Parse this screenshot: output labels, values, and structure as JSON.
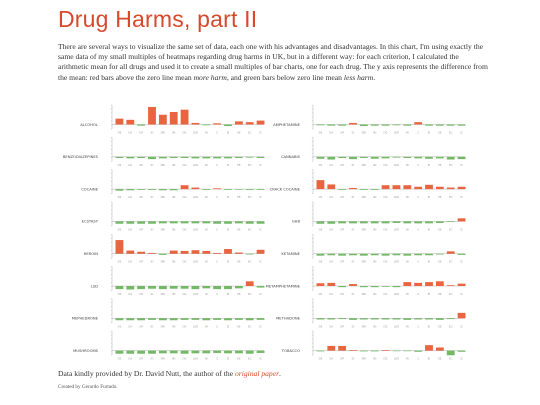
{
  "page": {
    "title": "Drug Harms, part II",
    "intro_1": "There are several ways to visualize the same set of data, each one with his advantages and disadvantages. In this chart, I'm using exactly the same data of my small multiples of heatmaps regarding drug harms in UK, but in a different way: for each criterion, I calculated the arithmetic mean for all drugs and used it to create a small multiples of bar charts, one for each drug. The y axis represents the difference from the mean: red bars above the zero line mean ",
    "intro_more": "more harm",
    "intro_2": ", and green bars below zero line mean ",
    "intro_less": "less harm",
    "intro_3": ".",
    "footer_text": "Data kindly provided by Dr. David Nutt, the author of the ",
    "footer_link": "original paper",
    "footer_end": ".",
    "credit": "Created by Gerardo Furtado."
  },
  "colors": {
    "positive": "#e8653f",
    "negative": "#72b865",
    "axis": "#9c9c9c",
    "title": "#d6492b"
  },
  "chart_data": {
    "type": "bar",
    "layout": "small multiples",
    "categories": [
      "DS",
      "DA",
      "DP",
      "ID",
      "DRI",
      "IRI",
      "DG",
      "LOR",
      "IN",
      "C",
      "EI",
      "EE",
      "EC",
      "IC"
    ],
    "series": [
      {
        "name": "ALCOHOL",
        "values": [
          1.5,
          1.2,
          -0.3,
          4.5,
          2.5,
          3.2,
          3.8,
          0.4,
          -0.2,
          0.3,
          -0.4,
          0.8,
          0.6,
          1.0
        ]
      },
      {
        "name": "AMPHETAMINE",
        "values": [
          -0.2,
          -0.3,
          -0.3,
          0.4,
          -0.4,
          -0.3,
          -0.3,
          -0.2,
          -0.3,
          0.6,
          -0.3,
          -0.3,
          -0.3,
          -0.3
        ]
      },
      {
        "name": "BENZODIAZEPINES",
        "values": [
          -0.3,
          -0.4,
          -0.3,
          -0.6,
          -0.4,
          -0.3,
          -0.3,
          -0.4,
          -0.4,
          -0.4,
          -0.4,
          -0.3,
          -0.2,
          -0.3
        ]
      },
      {
        "name": "CANNABIS",
        "values": [
          -0.5,
          -0.7,
          -0.3,
          -0.6,
          -0.3,
          -0.5,
          -0.4,
          -0.2,
          -0.3,
          -0.4,
          -0.5,
          -0.4,
          -0.7,
          -0.6
        ]
      },
      {
        "name": "COCAINE",
        "values": [
          -0.4,
          -0.3,
          -0.2,
          -0.2,
          -0.3,
          -0.3,
          1.0,
          0.4,
          -0.2,
          0.2,
          -0.2,
          -0.1,
          -0.2,
          -0.2
        ]
      },
      {
        "name": "CRACK COCAINE",
        "values": [
          2.3,
          1.2,
          -0.2,
          0.3,
          -0.2,
          -0.2,
          1.0,
          1.0,
          1.0,
          0.6,
          1.1,
          0.6,
          0.4,
          0.6
        ]
      },
      {
        "name": "ECSTASY",
        "values": [
          -0.6,
          -0.6,
          -0.6,
          -0.6,
          -0.5,
          -0.5,
          -0.5,
          -0.5,
          -0.5,
          -0.6,
          -0.6,
          -0.5,
          -0.6,
          -0.6
        ]
      },
      {
        "name": "GHB",
        "values": [
          -0.6,
          -0.6,
          -0.5,
          -0.5,
          -0.5,
          -0.5,
          -0.5,
          -0.4,
          -0.5,
          -0.5,
          -0.5,
          -0.4,
          -0.1,
          0.8
        ]
      },
      {
        "name": "HEROIN",
        "values": [
          3.5,
          0.8,
          0.5,
          0.2,
          -0.3,
          0.8,
          0.7,
          0.9,
          0.7,
          0.2,
          1.2,
          0.3,
          -0.2,
          1.0
        ]
      },
      {
        "name": "KETAMINE",
        "values": [
          -0.5,
          -0.4,
          -0.5,
          -0.4,
          -0.5,
          -0.4,
          -0.5,
          -0.4,
          -0.5,
          -0.4,
          -0.4,
          -0.2,
          0.6,
          -0.3
        ]
      },
      {
        "name": "LSD",
        "values": [
          -0.8,
          -0.9,
          -0.8,
          -0.7,
          -0.8,
          -0.7,
          -0.7,
          -0.8,
          -0.6,
          -0.8,
          -0.8,
          -0.6,
          1.2,
          -0.4
        ]
      },
      {
        "name": "METAMPHETAMINE",
        "values": [
          0.7,
          0.8,
          -0.3,
          0.5,
          -0.3,
          -0.3,
          -0.2,
          -0.3,
          1.0,
          0.8,
          1.0,
          1.2,
          0.2,
          0.6
        ]
      },
      {
        "name": "MEPHEDRONE",
        "values": [
          -0.5,
          -0.5,
          -0.5,
          -0.4,
          -0.5,
          -0.5,
          -0.4,
          -0.4,
          -0.5,
          -0.4,
          -0.5,
          -0.4,
          -0.5,
          -0.4
        ]
      },
      {
        "name": "METHADONE",
        "values": [
          -0.3,
          -0.3,
          -0.2,
          -0.4,
          -0.3,
          -0.3,
          -0.3,
          -0.3,
          -0.4,
          -0.3,
          -0.3,
          -0.4,
          -0.2,
          1.4
        ]
      },
      {
        "name": "MUSHROOMS",
        "values": [
          -0.8,
          -0.8,
          -0.8,
          -0.8,
          -0.7,
          -0.7,
          -0.8,
          -0.7,
          -0.7,
          -0.6,
          -0.7,
          -0.7,
          -0.8,
          -0.6
        ]
      },
      {
        "name": "TOBACCO",
        "values": [
          -0.2,
          1.2,
          1.2,
          0.0,
          -0.2,
          -0.2,
          0.0,
          -0.1,
          -0.1,
          -0.3,
          1.4,
          0.8,
          -1.2,
          -0.3
        ]
      }
    ],
    "ylim": [
      -1.5,
      5
    ],
    "xlabel": "",
    "ylabel": "",
    "legend": "none",
    "grid": false
  }
}
